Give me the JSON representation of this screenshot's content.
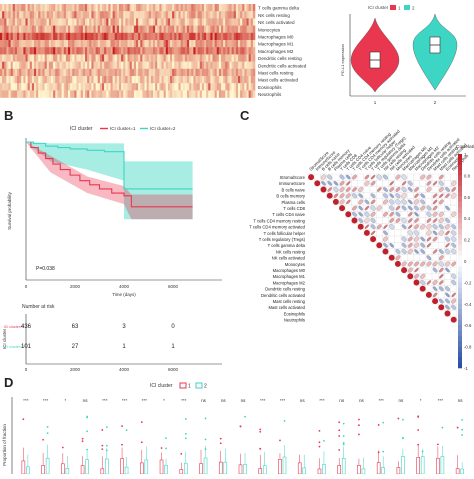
{
  "panel_labels": {
    "b": "B",
    "c": "C",
    "d": "D"
  },
  "colors": {
    "cluster1": "#e8374f",
    "cluster2": "#3dd6c4",
    "heat_low": "#fff7d0",
    "heat_high": "#c81e1e",
    "corr_pos": "#c0202a",
    "corr_neg": "#2a4fa8"
  },
  "chart_data": [
    {
      "type": "heatmap",
      "panel": "A",
      "rows": [
        "T cells gamma delta",
        "NK cells resting",
        "NK cells activated",
        "Monocytes",
        "Macrophages M0",
        "Macrophages M1",
        "Macrophages M2",
        "Dendritic cells resting",
        "Dendritic cells activated",
        "Mast cells resting",
        "Mast cells activated",
        "Eosinophils",
        "Neutrophils"
      ],
      "row_intensity": [
        0.25,
        0.3,
        0.2,
        0.35,
        0.8,
        0.3,
        0.6,
        0.2,
        0.15,
        0.3,
        0.15,
        0.1,
        0.12
      ]
    },
    {
      "type": "violin",
      "panel": "F",
      "title": "ICI cluster",
      "legend": [
        "1",
        "2"
      ],
      "ylabel": "PD-L1 expression",
      "categories": [
        "1",
        "2"
      ]
    },
    {
      "type": "line",
      "panel": "B",
      "title": "ICI cluster",
      "legend": [
        "ICI cluster=1",
        "ICI cluster=2"
      ],
      "xlabel": "Time (days)",
      "ylabel": "Survival probability",
      "xlim": [
        0,
        8000
      ],
      "ylim": [
        0,
        1
      ],
      "xticks": [
        "0",
        "2000",
        "4000",
        "6000"
      ],
      "pvalue": "P=0.038",
      "series": [
        {
          "name": "ICI cluster=1",
          "x": [
            0,
            200,
            500,
            800,
            1100,
            1400,
            1800,
            2200,
            2600,
            3000,
            3500,
            4000,
            4300,
            4700,
            6800
          ],
          "y": [
            1.0,
            0.96,
            0.92,
            0.88,
            0.84,
            0.8,
            0.76,
            0.72,
            0.69,
            0.66,
            0.63,
            0.61,
            0.53,
            0.53,
            0.53
          ]
        },
        {
          "name": "ICI cluster=2",
          "x": [
            0,
            300,
            800,
            1300,
            1800,
            2500,
            3200,
            3800,
            4000,
            6800
          ],
          "y": [
            1.0,
            0.99,
            0.97,
            0.96,
            0.95,
            0.94,
            0.93,
            0.93,
            0.66,
            0.66
          ]
        }
      ],
      "risk_table": {
        "title": "Number at risk",
        "xlabel": "Time (days)",
        "ylabel": "ICI cluster",
        "rows": [
          {
            "name": "ICI cluster=1",
            "counts": [
              "436",
              "63",
              "3",
              "0"
            ]
          },
          {
            "name": "ICI cluster=2",
            "counts": [
              "101",
              "27",
              "1",
              "1"
            ]
          }
        ]
      }
    },
    {
      "type": "heatmap",
      "panel": "C",
      "legend_title": "Correlation",
      "scale_ticks": [
        "1",
        "0.8",
        "0.6",
        "0.4",
        "0.2",
        "0",
        "-0.2",
        "-0.4",
        "-0.6",
        "-0.8",
        "-1"
      ],
      "rows": [
        "StromalScore",
        "ImmuneScore",
        "B cells naive",
        "B cells memory",
        "Plasma cells",
        "T cells CD8",
        "T cells CD4 naive",
        "T cells CD4 memory resting",
        "T cells CD4 memory activated",
        "T cells follicular helper",
        "T cells regulatory (Tregs)",
        "T cells gamma delta",
        "NK cells resting",
        "NK cells activated",
        "Monocytes",
        "Macrophages M0",
        "Macrophages M1",
        "Macrophages M2",
        "Dendritic cells resting",
        "Dendritic cells activated",
        "Mast cells resting",
        "Mast cells activated",
        "Eosinophils",
        "Neutrophils"
      ]
    },
    {
      "type": "box",
      "panel": "D",
      "title": "ICI cluster",
      "legend": [
        "1",
        "2"
      ],
      "ylabel": "Proportion of fraction",
      "significance": [
        "***",
        "***",
        "*",
        "ns",
        "***",
        "***",
        "***",
        "*",
        "***",
        "ns",
        "ns",
        "ns",
        "***",
        "***",
        "ns",
        "***",
        "ns",
        "ns",
        "***",
        "ns",
        "*",
        "***",
        "ns"
      ]
    }
  ]
}
